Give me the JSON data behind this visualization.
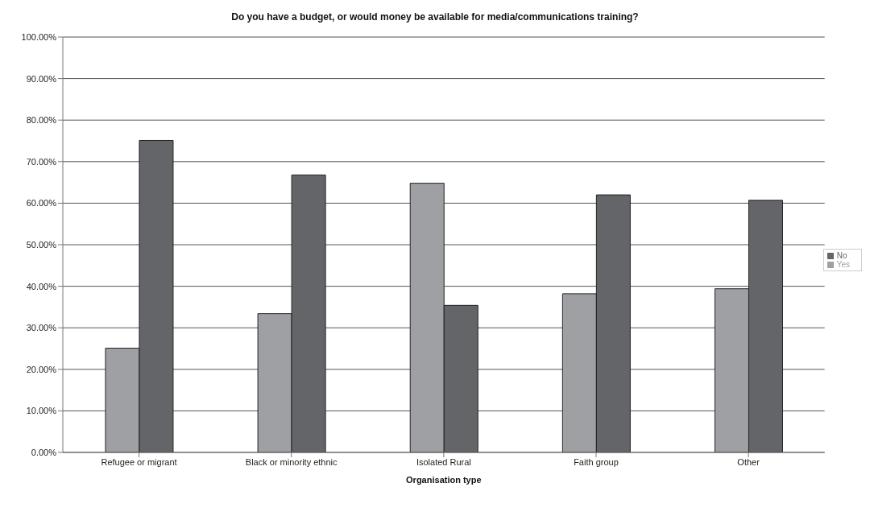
{
  "chart_data": {
    "type": "bar",
    "title": "Do you have a budget, or would money be available for media/communications training?",
    "xlabel": "Organisation type",
    "categories": [
      "Refugee or migrant",
      "Black or minority ethnic",
      "Isolated Rural",
      "Faith group",
      "Other"
    ],
    "series": [
      {
        "name": "Yes",
        "color": "#9fa0a4",
        "values": [
          25.1,
          33.4,
          64.8,
          38.2,
          39.4
        ]
      },
      {
        "name": "No",
        "color": "#646569",
        "values": [
          75.1,
          66.8,
          35.4,
          62.0,
          60.7
        ]
      }
    ],
    "ylim": [
      0,
      100
    ],
    "yticks": [
      {
        "value": 0,
        "label": "0.00%"
      },
      {
        "value": 10,
        "label": "10.00%"
      },
      {
        "value": 20,
        "label": "20.00%"
      },
      {
        "value": 30,
        "label": "30.00%"
      },
      {
        "value": 40,
        "label": "40.00%"
      },
      {
        "value": 50,
        "label": "50.00%"
      },
      {
        "value": 60,
        "label": "60.00%"
      },
      {
        "value": 70,
        "label": "70.00%"
      },
      {
        "value": 80,
        "label": "80.00%"
      },
      {
        "value": 90,
        "label": "90.00%"
      },
      {
        "value": 100,
        "label": "100.00%"
      }
    ],
    "grid": "y",
    "legend": "right"
  }
}
